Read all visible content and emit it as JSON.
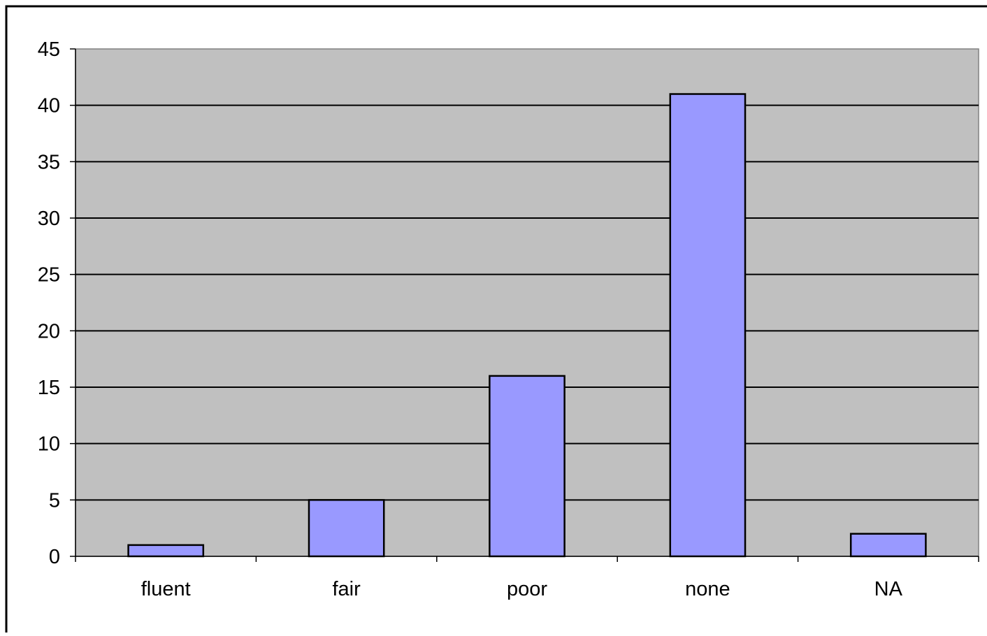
{
  "chart_data": {
    "type": "bar",
    "categories": [
      "fluent",
      "fair",
      "poor",
      "none",
      "NA"
    ],
    "values": [
      1,
      5,
      16,
      41,
      2
    ],
    "title": "",
    "xlabel": "",
    "ylabel": "",
    "ylim": [
      0,
      45
    ],
    "yticks": [
      0,
      5,
      10,
      15,
      20,
      25,
      30,
      35,
      40,
      45
    ],
    "ytick_labels": [
      "0",
      "5",
      "10",
      "15",
      "20",
      "25",
      "30",
      "35",
      "40",
      "45"
    ],
    "grid": true,
    "legend": "none",
    "colors": {
      "plot_background": "#c0c0c0",
      "bar_fill": "#9999ff",
      "bar_stroke": "#000000",
      "gridline": "#000000"
    }
  }
}
